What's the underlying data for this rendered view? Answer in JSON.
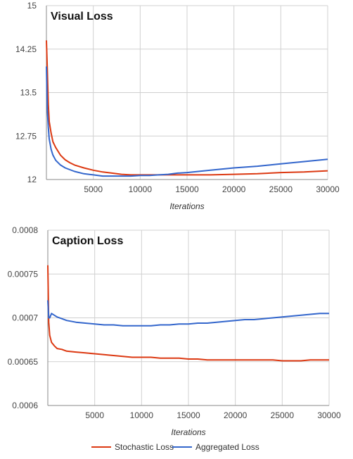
{
  "chart_data": [
    {
      "type": "line",
      "title": "Visual Loss",
      "xlabel": "Iterations",
      "ylabel": "",
      "xlim": [
        0,
        30000
      ],
      "ylim": [
        12,
        15
      ],
      "x_ticks": [
        5000,
        10000,
        15000,
        20000,
        25000,
        30000
      ],
      "x_tick_labels": [
        "5000",
        "10000",
        "15000",
        "20000",
        "25000",
        "30000"
      ],
      "y_ticks": [
        12,
        12.75,
        13.5,
        14.25,
        15
      ],
      "y_tick_labels": [
        "12",
        "12.75",
        "13.5",
        "14.25",
        "15"
      ],
      "grid": true,
      "series": [
        {
          "name": "Stochastic Loss",
          "color": "#dc3912",
          "x": [
            0,
            100,
            200,
            300,
            500,
            700,
            1000,
            1500,
            2000,
            2500,
            3000,
            4000,
            5000,
            6000,
            7000,
            8000,
            9000,
            10000,
            11000,
            12000,
            13000,
            14000,
            15000,
            17500,
            20000,
            22500,
            25000,
            27500,
            30000
          ],
          "y": [
            14.4,
            13.9,
            13.3,
            13.0,
            12.8,
            12.65,
            12.55,
            12.42,
            12.34,
            12.29,
            12.25,
            12.2,
            12.16,
            12.13,
            12.11,
            12.09,
            12.08,
            12.08,
            12.08,
            12.08,
            12.08,
            12.08,
            12.08,
            12.08,
            12.09,
            12.1,
            12.12,
            12.13,
            12.15
          ]
        },
        {
          "name": "Aggregated Loss",
          "color": "#3366cc",
          "x": [
            0,
            100,
            200,
            300,
            500,
            700,
            1000,
            1500,
            2000,
            2500,
            3000,
            4000,
            5000,
            6000,
            7000,
            8000,
            9000,
            10000,
            11000,
            12000,
            13000,
            14000,
            15000,
            17500,
            20000,
            22500,
            25000,
            27500,
            30000
          ],
          "y": [
            13.95,
            13.2,
            12.9,
            12.7,
            12.52,
            12.42,
            12.33,
            12.25,
            12.2,
            12.17,
            12.14,
            12.1,
            12.08,
            12.06,
            12.06,
            12.06,
            12.06,
            12.07,
            12.07,
            12.08,
            12.09,
            12.11,
            12.12,
            12.16,
            12.2,
            12.23,
            12.27,
            12.31,
            12.35
          ]
        }
      ]
    },
    {
      "type": "line",
      "title": "Caption Loss",
      "xlabel": "Iterations",
      "ylabel": "",
      "xlim": [
        0,
        30000
      ],
      "ylim": [
        0.0006,
        0.0008
      ],
      "x_ticks": [
        5000,
        10000,
        15000,
        20000,
        25000,
        30000
      ],
      "x_tick_labels": [
        "5000",
        "10000",
        "15000",
        "20000",
        "25000",
        "30000"
      ],
      "y_ticks": [
        0.0006,
        0.00065,
        0.0007,
        0.00075,
        0.0008
      ],
      "y_tick_labels": [
        "0.0006",
        "0.00065",
        "0.0007",
        "0.00075",
        "0.0008"
      ],
      "grid": true,
      "series": [
        {
          "name": "Stochastic Loss",
          "color": "#dc3912",
          "x": [
            0,
            100,
            200,
            400,
            700,
            1000,
            1500,
            2000,
            3000,
            4000,
            5000,
            6000,
            7000,
            8000,
            9000,
            10000,
            11000,
            12000,
            13000,
            14000,
            15000,
            16000,
            17000,
            18000,
            19000,
            20000,
            21000,
            22000,
            23000,
            24000,
            25000,
            26000,
            27000,
            28000,
            29000,
            30000
          ],
          "y": [
            0.00076,
            0.000695,
            0.00068,
            0.000672,
            0.000668,
            0.000665,
            0.000664,
            0.000662,
            0.000661,
            0.00066,
            0.000659,
            0.000658,
            0.000657,
            0.000656,
            0.000655,
            0.000655,
            0.000655,
            0.000654,
            0.000654,
            0.000654,
            0.000653,
            0.000653,
            0.000652,
            0.000652,
            0.000652,
            0.000652,
            0.000652,
            0.000652,
            0.000652,
            0.000652,
            0.000651,
            0.000651,
            0.000651,
            0.000652,
            0.000652,
            0.000652
          ]
        },
        {
          "name": "Aggregated Loss",
          "color": "#3366cc",
          "x": [
            0,
            100,
            200,
            400,
            700,
            1000,
            1500,
            2000,
            3000,
            4000,
            5000,
            6000,
            7000,
            8000,
            9000,
            10000,
            11000,
            12000,
            13000,
            14000,
            15000,
            16000,
            17000,
            18000,
            19000,
            20000,
            21000,
            22000,
            23000,
            24000,
            25000,
            26000,
            27000,
            28000,
            29000,
            30000
          ],
          "y": [
            0.00072,
            0.0007,
            0.0007,
            0.000705,
            0.000703,
            0.000701,
            0.000699,
            0.000697,
            0.000695,
            0.000694,
            0.000693,
            0.000692,
            0.000692,
            0.000691,
            0.000691,
            0.000691,
            0.000691,
            0.000692,
            0.000692,
            0.000693,
            0.000693,
            0.000694,
            0.000694,
            0.000695,
            0.000696,
            0.000697,
            0.000698,
            0.000698,
            0.000699,
            0.0007,
            0.000701,
            0.000702,
            0.000703,
            0.000704,
            0.000705,
            0.000705
          ]
        }
      ]
    }
  ],
  "legend": {
    "position": "bottom",
    "items": [
      {
        "label": "Stochastic Loss",
        "color": "#dc3912"
      },
      {
        "label": "Aggregated Loss",
        "color": "#3366cc"
      }
    ]
  }
}
